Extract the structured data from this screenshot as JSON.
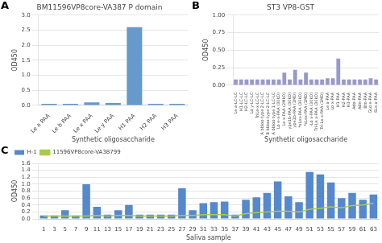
{
  "chart_data": [
    {
      "type": "bar",
      "title": "BM11596VP8core-VA387 P domain",
      "xlabel": "Synthetic oligosaccharide",
      "ylabel": "OD450",
      "categories": [
        "Le a PAA",
        "Le b PAA",
        "Le x PAA",
        "Le y PAA",
        "H1 PAA",
        "H2 PAA",
        "H3 PAA"
      ],
      "values": [
        0.05,
        0.05,
        0.1,
        0.08,
        2.6,
        0.05,
        0.05
      ],
      "color": "#6699cc",
      "ylim": [
        0.0,
        3.0
      ],
      "yticks": [
        {
          "value": 0,
          "label": "0.0"
        },
        0.5,
        {
          "value": 1,
          "label": "1.0"
        },
        1.5,
        {
          "value": 2,
          "label": "2.0"
        },
        2.5,
        {
          "value": 3,
          "label": "3.0"
        }
      ],
      "grid": true,
      "annotations": [
        "A"
      ]
    },
    {
      "type": "bar",
      "title": "ST3 VP8-GST",
      "xlabel": "Synthetic oligosaccharide",
      "ylabel": "OD450",
      "categories": [
        "Le a-LC-LC",
        "H1-LC-LC",
        "H2-LC-LC",
        "Lo y-LC-LC",
        "TriLe-x-LC-LC",
        "A bbloo type 2-LC-LC",
        "B bbloo type 2-LC-LC",
        "A bbloo type 1-LC-LC",
        "Lo e-x-PAA (30kD)",
        "Le x-PAA (2MkD)",
        "ype1b-PAA (30kD)",
        "ype1b-PAA (1MD)",
        "*sLex-PAA (30kD)",
        "*sLex-PAA (1MD)",
        "-Lo x-PAA (30kD)",
        "Tri-Le x-PAA (30kD)",
        "Tri-Le x-PAA (1MD)",
        "Le a-PAA",
        "Lo x-PAA",
        "H1-PAA",
        "H2-PAA",
        "H3-PAA",
        "Ado-PAA",
        "Adn-PAA",
        "Btn-PAA",
        "GLo e-PAA",
        "SLe a-PAA"
      ],
      "values": [
        0.08,
        0.08,
        0.08,
        0.08,
        0.08,
        0.08,
        0.08,
        0.08,
        0.08,
        0.18,
        0.08,
        0.22,
        0.08,
        0.18,
        0.08,
        0.08,
        0.08,
        0.1,
        0.1,
        0.38,
        0.08,
        0.08,
        0.08,
        0.08,
        0.08,
        0.1,
        0.08
      ],
      "color": "#9999cc",
      "ylim": [
        0.0,
        1.0
      ],
      "yticks": [
        {
          "value": 0,
          "label": "0.00"
        },
        0.25,
        {
          "value": 0.5,
          "label": "0.50"
        },
        0.75,
        {
          "value": 1,
          "label": "1.00"
        }
      ],
      "grid": true,
      "annotations": [
        "B"
      ]
    },
    {
      "type": "bar",
      "xlabel": "Saliva sample",
      "ylabel": "OD450",
      "categories": [
        "1",
        "3",
        "5",
        "7",
        "9",
        "11",
        "13",
        "15",
        "17",
        "19",
        "21",
        "23",
        "25",
        "27",
        "29",
        "31",
        "33",
        "35",
        "37",
        "39",
        "41",
        "43",
        "45",
        "47",
        "49",
        "51",
        "53",
        "55",
        "57",
        "59",
        "61",
        "63"
      ],
      "series": [
        {
          "name": "H-1",
          "type": "bar",
          "color": "#5588cc",
          "values": [
            0.1,
            0.1,
            0.25,
            0.1,
            1.0,
            0.35,
            0.12,
            0.25,
            0.4,
            0.12,
            0.12,
            0.12,
            0.12,
            0.88,
            0.25,
            0.45,
            0.48,
            0.5,
            0.12,
            0.55,
            0.62,
            0.75,
            1.08,
            0.65,
            0.48,
            1.35,
            1.28,
            1.05,
            0.6,
            0.75,
            0.55,
            0.7
          ]
        },
        {
          "name": "11596VP8core-VA38799",
          "type": "line",
          "color": "#aacc44",
          "values": [
            0.08,
            0.08,
            0.08,
            0.08,
            0.08,
            0.1,
            0.08,
            0.1,
            0.1,
            0.08,
            0.08,
            0.08,
            0.08,
            0.1,
            0.1,
            0.12,
            0.12,
            0.12,
            0.08,
            0.15,
            0.18,
            0.2,
            0.22,
            0.22,
            0.2,
            0.28,
            0.3,
            0.35,
            0.32,
            0.38,
            0.4,
            0.45
          ]
        }
      ],
      "ylim": [
        0.0,
        1.6
      ],
      "yticks": [
        {
          "value": 0,
          "label": "0.0"
        },
        0.2,
        0.4,
        0.6,
        0.8,
        {
          "value": 1,
          "label": "1.0"
        },
        1.2,
        1.4,
        1.6
      ],
      "grid": true,
      "legend": "upper left",
      "annotations": [
        "C"
      ]
    }
  ]
}
